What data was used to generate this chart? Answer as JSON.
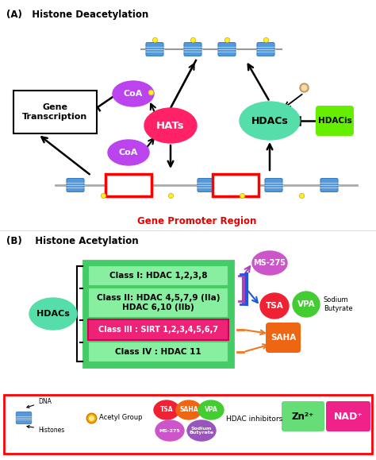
{
  "title_A": "(A)   Histone Deacetylation",
  "title_B": "(B)    Histone Acetylation",
  "bg": "#ffffff",
  "section_A": {
    "hats_color": "#FF2266",
    "hats_label": "HATs",
    "hdacs_color": "#55DDAA",
    "hdacs_label": "HDACs",
    "coa_color": "#BB44EE",
    "coa_label": "CoA",
    "hdacis_color": "#66EE00",
    "hdacis_label": "HDACis",
    "gene_box_label": "Gene\nTranscription",
    "gene_promoter_label": "Gene Promoter Region",
    "gene_promoter_color": "#EE0000"
  },
  "section_B": {
    "hdacs_color": "#55DDAA",
    "hdacs_label": "HDACs",
    "class1_label": "Class I: HDAC 1,2,3,8",
    "class2_label": "Class II: HDAC 4,5,7,9 (IIa)\nHDAC 6,10 (IIb)",
    "class3_label": "Class III : SIRT 1,2,3,4,5,6,7",
    "class4_label": "Class IV : HDAC 11",
    "outer_green": "#44CC66",
    "inner_green": "#88EEA0",
    "class3_color": "#EE2277",
    "ms275_color": "#CC55CC",
    "tsa_color": "#EE2233",
    "vpa_color": "#44CC33",
    "saha_color": "#EE6611",
    "sodium_label": "Sodium\nButyrate",
    "ms275_label": "MS-275",
    "tsa_label": "TSA",
    "vpa_label": "VPA",
    "saha_label": "SAHA",
    "line1_color": "#AA44BB",
    "line2_color": "#2255DD",
    "line3_color": "#EE7722"
  },
  "legend": {
    "zn_color": "#66DD77",
    "zn_label": "Zn²⁺",
    "nad_color": "#EE2288",
    "nad_label": "NAD⁺",
    "acetyl_color": "#FFAA00",
    "hdac_inhib_label": "HDAC inhibitors",
    "tsa_c": "#EE2233",
    "saha_c": "#EE6611",
    "vpa_c": "#44CC33",
    "ms275_c": "#CC55CC",
    "sodium_c": "#9955BB"
  }
}
